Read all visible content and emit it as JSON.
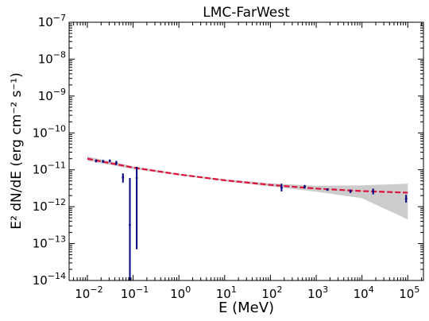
{
  "chart_data": {
    "type": "scatter",
    "title": "LMC-FarWest",
    "xlabel": "E (MeV)",
    "ylabel": "E² dN/dE (erg cm⁻² s⁻¹)",
    "xscale": "log",
    "yscale": "log",
    "xlim": [
      0.004,
      220000
    ],
    "ylim": [
      1e-14,
      1e-07
    ],
    "grid": false,
    "x_tick_labels": [
      {
        "mant": "10",
        "exp": "−2"
      },
      {
        "mant": "10",
        "exp": "−1"
      },
      {
        "mant": "10",
        "exp": "0"
      },
      {
        "mant": "10",
        "exp": "1"
      },
      {
        "mant": "10",
        "exp": "2"
      },
      {
        "mant": "10",
        "exp": "3"
      },
      {
        "mant": "10",
        "exp": "4"
      },
      {
        "mant": "10",
        "exp": "5"
      }
    ],
    "y_tick_labels": [
      {
        "mant": "10",
        "exp": "−14"
      },
      {
        "mant": "10",
        "exp": "−13"
      },
      {
        "mant": "10",
        "exp": "−12"
      },
      {
        "mant": "10",
        "exp": "−11"
      },
      {
        "mant": "10",
        "exp": "−10"
      },
      {
        "mant": "10",
        "exp": "−9"
      },
      {
        "mant": "10",
        "exp": "−8"
      },
      {
        "mant": "10",
        "exp": "−7"
      }
    ],
    "model_curve": {
      "color": "#dc143c",
      "style": "dashed",
      "x": [
        0.01,
        0.1,
        1,
        10,
        100,
        1000,
        10000,
        100000
      ],
      "y": [
        2e-11,
        1.15e-11,
        7.5e-12,
        5.2e-12,
        3.9e-12,
        3.1e-12,
        2.65e-12,
        2.4e-12
      ]
    },
    "uncertainty_band": {
      "color": "#cccccc",
      "x": [
        0.01,
        0.1,
        1,
        10,
        100,
        1000,
        10000,
        100000
      ],
      "upper": [
        2.3e-11,
        1.25e-11,
        7.9e-12,
        5.5e-12,
        4.3e-12,
        3.7e-12,
        3.8e-12,
        4.2e-12
      ],
      "lower": [
        1.75e-11,
        1.05e-11,
        7.1e-12,
        4.9e-12,
        3.55e-12,
        2.55e-12,
        1.7e-12,
        4.5e-13
      ]
    },
    "points": {
      "color": "#000080",
      "data": [
        {
          "x": 0.0155,
          "y": 1.75e-11,
          "ylo": 1.6e-11,
          "yhi": 1.9e-11
        },
        {
          "x": 0.022,
          "y": 1.7e-11,
          "ylo": 1.55e-11,
          "yhi": 1.85e-11
        },
        {
          "x": 0.031,
          "y": 1.75e-11,
          "ylo": 1.6e-11,
          "yhi": 1.9e-11
        },
        {
          "x": 0.043,
          "y": 1.55e-11,
          "ylo": 1.35e-11,
          "yhi": 1.75e-11
        },
        {
          "x": 0.06,
          "y": 6.2e-12,
          "ylo": 4.5e-12,
          "yhi": 8e-12
        },
        {
          "x": 0.085,
          "y": 3.2e-13,
          "ylo": 1e-14,
          "yhi": 6e-12
        },
        {
          "x": 0.12,
          "y": 6e-12,
          "ylo": 7e-14,
          "yhi": 1.2e-11
        },
        {
          "x": 175,
          "y": 3.3e-12,
          "ylo": 2.6e-12,
          "yhi": 4.2e-12
        },
        {
          "x": 560,
          "y": 3.5e-12,
          "ylo": 3.1e-12,
          "yhi": 3.9e-12
        },
        {
          "x": 1750,
          "y": 2.9e-12,
          "ylo": 2.7e-12,
          "yhi": 3.1e-12
        },
        {
          "x": 5600,
          "y": 2.6e-12,
          "ylo": 2.35e-12,
          "yhi": 2.9e-12
        },
        {
          "x": 17500,
          "y": 2.6e-12,
          "ylo": 2.15e-12,
          "yhi": 3.1e-12
        },
        {
          "x": 92000,
          "y": 1.65e-12,
          "ylo": 1.3e-12,
          "yhi": 2.1e-12
        }
      ]
    }
  }
}
